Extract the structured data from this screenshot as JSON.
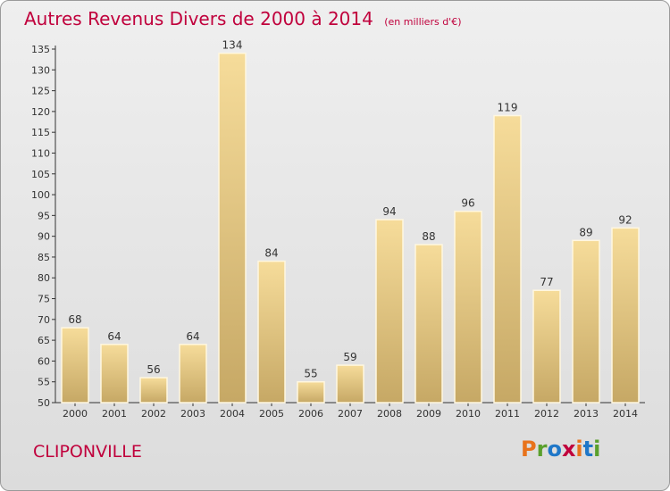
{
  "header": {
    "title": "Autres Revenus Divers de 2000 à 2014",
    "unit": "(en milliers d'€)"
  },
  "footer": {
    "town": "CLIPONVILLE",
    "logo_text": "Proxiti",
    "logo_colors": [
      "#e8731c",
      "#5aa02c",
      "#1f77c8",
      "#c0003c",
      "#e8731c",
      "#1f77c8",
      "#5aa02c"
    ]
  },
  "colors": {
    "accent": "#c0003c",
    "bar_light": "#f6dc9a",
    "bar_dark": "#c6a865",
    "axis": "#333333"
  },
  "chart_data": {
    "type": "bar",
    "categories": [
      "2000",
      "2001",
      "2002",
      "2003",
      "2004",
      "2005",
      "2006",
      "2007",
      "2008",
      "2009",
      "2010",
      "2011",
      "2012",
      "2013",
      "2014"
    ],
    "values": [
      68,
      64,
      56,
      64,
      134,
      84,
      55,
      59,
      94,
      88,
      96,
      119,
      77,
      89,
      92
    ],
    "ylim": [
      50,
      135
    ],
    "yticks": [
      50,
      55,
      60,
      65,
      70,
      75,
      80,
      85,
      90,
      95,
      100,
      105,
      110,
      115,
      120,
      125,
      130,
      135
    ],
    "grid": false,
    "title": "Autres Revenus Divers de 2000 à 2014",
    "xlabel": "",
    "ylabel": ""
  }
}
